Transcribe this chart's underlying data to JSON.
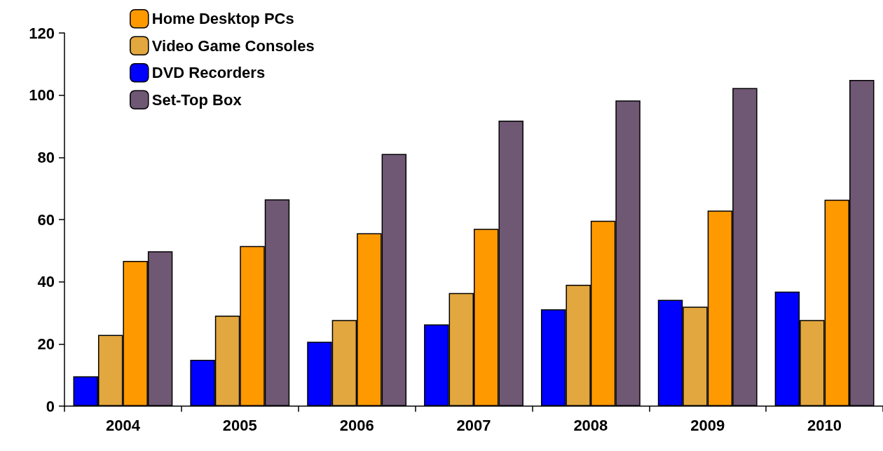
{
  "chart_data": {
    "type": "bar",
    "categories": [
      "2004",
      "2005",
      "2006",
      "2007",
      "2008",
      "2009",
      "2010"
    ],
    "series": [
      {
        "name": "DVD Recorders",
        "color": "#0000ff",
        "values": [
          9.6,
          14.9,
          20.7,
          26.3,
          31.1,
          34.2,
          36.8
        ]
      },
      {
        "name": "Video Game Consoles",
        "color": "#e2a73e",
        "values": [
          22.9,
          29.1,
          27.7,
          36.4,
          39.0,
          32.0,
          27.7
        ]
      },
      {
        "name": "Home Desktop PCs",
        "color": "#ff9900",
        "values": [
          46.7,
          51.5,
          55.6,
          57.0,
          59.6,
          62.9,
          66.4
        ]
      },
      {
        "name": "Set-Top Box",
        "color": "#6f5874",
        "values": [
          49.8,
          66.5,
          81.1,
          91.8,
          98.3,
          102.3,
          104.9
        ]
      }
    ],
    "ylim": [
      0,
      120
    ],
    "yticks": [
      0,
      20,
      40,
      60,
      80,
      100,
      120
    ],
    "grid": false,
    "legend": "top left"
  }
}
